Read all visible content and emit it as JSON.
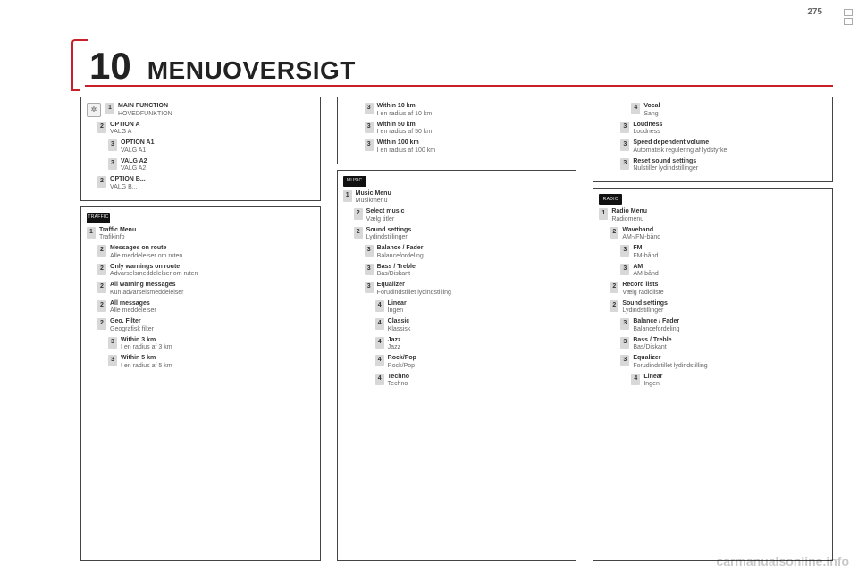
{
  "page_number": "275",
  "chapter_number": "10",
  "title": "MENUOVERSIGT",
  "watermark": "carmanualsonline.info",
  "col1": {
    "panel1": {
      "icon": "✲",
      "items": [
        {
          "n": "1",
          "en": "MAIN FUNCTION",
          "da": "HOVEDFUNKTION",
          "indent": 1
        },
        {
          "n": "2",
          "en": "OPTION A",
          "da": "VALG A",
          "indent": 2
        },
        {
          "n": "3",
          "en": "OPTION A1",
          "da": "VALG A1",
          "indent": 3
        },
        {
          "n": "3",
          "en": "VALG A2",
          "da": "VALG A2",
          "indent": 3
        },
        {
          "n": "2",
          "en": "OPTION B...",
          "da": "VALG B...",
          "indent": 2
        }
      ]
    },
    "panel2": {
      "tab": "TRAFFIC",
      "head": {
        "n": "1",
        "en": "Traffic Menu",
        "da": "Trafikinfo"
      },
      "items": [
        {
          "n": "2",
          "en": "Messages on route",
          "da": "Alle meddelelser om ruten",
          "indent": 2
        },
        {
          "n": "2",
          "en": "Only warnings on route",
          "da": "Advarselsmeddelelser om ruten",
          "indent": 2
        },
        {
          "n": "2",
          "en": "All warning messages",
          "da": "Kun advarselsmeddelelser",
          "indent": 2
        },
        {
          "n": "2",
          "en": "All messages",
          "da": "Alle meddelelser",
          "indent": 2
        },
        {
          "n": "2",
          "en": "Geo. Filter",
          "da": "Geografisk filter",
          "indent": 2
        },
        {
          "n": "3",
          "en": "Within 3 km",
          "da": "I en radius af 3 km",
          "indent": 3
        },
        {
          "n": "3",
          "en": "Within 5 km",
          "da": "I en radius af 5 km",
          "indent": 3
        }
      ]
    }
  },
  "col2": {
    "panel1": {
      "items": [
        {
          "n": "3",
          "en": "Within 10 km",
          "da": "I en radius af 10 km",
          "indent": 3
        },
        {
          "n": "3",
          "en": "Within 50 km",
          "da": "I en radius af 50 km",
          "indent": 3
        },
        {
          "n": "3",
          "en": "Within 100 km",
          "da": "I en radius af 100 km",
          "indent": 3
        }
      ]
    },
    "panel2": {
      "tab": "MUSIC",
      "head": {
        "n": "1",
        "en": "Music Menu",
        "da": "Musikmenu"
      },
      "items": [
        {
          "n": "2",
          "en": "Select music",
          "da": "Vælg titler",
          "indent": 2
        },
        {
          "n": "2",
          "en": "Sound settings",
          "da": "Lydindstillinger",
          "indent": 2
        },
        {
          "n": "3",
          "en": "Balance / Fader",
          "da": "Balancefordeling",
          "indent": 3
        },
        {
          "n": "3",
          "en": "Bass / Treble",
          "da": "Bas/Diskant",
          "indent": 3
        },
        {
          "n": "3",
          "en": "Equalizer",
          "da": "Forudindstillet lydindstilling",
          "indent": 3
        },
        {
          "n": "4",
          "en": "Linear",
          "da": "Ingen",
          "indent": 4
        },
        {
          "n": "4",
          "en": "Classic",
          "da": "Klassisk",
          "indent": 4
        },
        {
          "n": "4",
          "en": "Jazz",
          "da": "Jazz",
          "indent": 4
        },
        {
          "n": "4",
          "en": "Rock/Pop",
          "da": "Rock/Pop",
          "indent": 4
        },
        {
          "n": "4",
          "en": "Techno",
          "da": "Techno",
          "indent": 4
        }
      ]
    }
  },
  "col3": {
    "panel1": {
      "items": [
        {
          "n": "4",
          "en": "Vocal",
          "da": "Sang",
          "indent": 4
        },
        {
          "n": "3",
          "en": "Loudness",
          "da": "Loudness",
          "indent": 3
        },
        {
          "n": "3",
          "en": "Speed dependent volume",
          "da": "Automatisk regulering af lydstyrke",
          "indent": 3
        },
        {
          "n": "3",
          "en": "Reset sound settings",
          "da": "Nulstiller lydindstillinger",
          "indent": 3
        }
      ]
    },
    "panel2": {
      "tab": "RADIO",
      "head": {
        "n": "1",
        "en": "Radio Menu",
        "da": "Radiomenu"
      },
      "items": [
        {
          "n": "2",
          "en": "Waveband",
          "da": "AM-/FM-bånd",
          "indent": 2
        },
        {
          "n": "3",
          "en": "FM",
          "da": "FM-bånd",
          "indent": 3
        },
        {
          "n": "3",
          "en": "AM",
          "da": "AM-bånd",
          "indent": 3
        },
        {
          "n": "2",
          "en": "Record lists",
          "da": "Vælg radioliste",
          "indent": 2
        },
        {
          "n": "2",
          "en": "Sound settings",
          "da": "Lydindstillinger",
          "indent": 2
        },
        {
          "n": "3",
          "en": "Balance / Fader",
          "da": "Balancefordeling",
          "indent": 3
        },
        {
          "n": "3",
          "en": "Bass / Treble",
          "da": "Bas/Diskant",
          "indent": 3
        },
        {
          "n": "3",
          "en": "Equalizer",
          "da": "Forudindstillet lydindstilling",
          "indent": 3
        },
        {
          "n": "4",
          "en": "Linear",
          "da": "Ingen",
          "indent": 4
        }
      ]
    }
  }
}
